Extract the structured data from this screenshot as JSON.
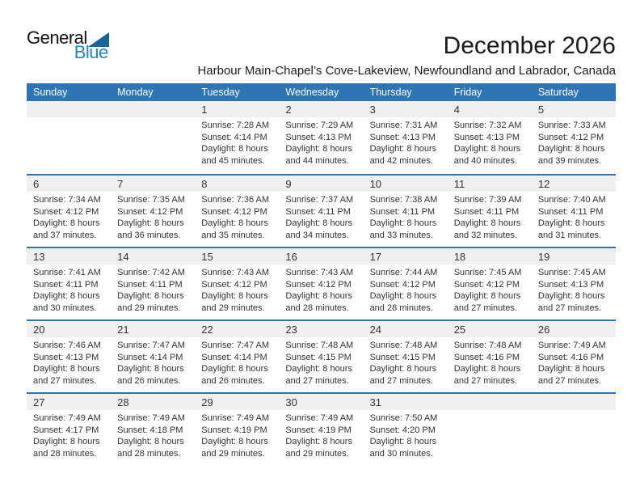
{
  "page": {
    "title": "December 2026",
    "subtitle": "Harbour Main-Chapel’s Cove-Lakeview, Newfoundland and Labrador, Canada"
  },
  "logo": {
    "part1": "General",
    "part2": "Blue"
  },
  "colors": {
    "header-blue": "#2E75B6",
    "line-blue": "#2E75B6",
    "band-gray": "#EFEFEF",
    "text-dark": "#333333",
    "logo-blue": "#1E88C9",
    "logo-tri": "#16649E"
  },
  "calendar": {
    "weekdays": [
      "Sunday",
      "Monday",
      "Tuesday",
      "Wednesday",
      "Thursday",
      "Friday",
      "Saturday"
    ],
    "weeks": [
      [
        null,
        null,
        {
          "day": "1",
          "lines": [
            "Sunrise: 7:28 AM",
            "Sunset: 4:14 PM",
            "Daylight: 8 hours",
            "and 45 minutes."
          ]
        },
        {
          "day": "2",
          "lines": [
            "Sunrise: 7:29 AM",
            "Sunset: 4:13 PM",
            "Daylight: 8 hours",
            "and 44 minutes."
          ]
        },
        {
          "day": "3",
          "lines": [
            "Sunrise: 7:31 AM",
            "Sunset: 4:13 PM",
            "Daylight: 8 hours",
            "and 42 minutes."
          ]
        },
        {
          "day": "4",
          "lines": [
            "Sunrise: 7:32 AM",
            "Sunset: 4:13 PM",
            "Daylight: 8 hours",
            "and 40 minutes."
          ]
        },
        {
          "day": "5",
          "lines": [
            "Sunrise: 7:33 AM",
            "Sunset: 4:12 PM",
            "Daylight: 8 hours",
            "and 39 minutes."
          ]
        }
      ],
      [
        {
          "day": "6",
          "lines": [
            "Sunrise: 7:34 AM",
            "Sunset: 4:12 PM",
            "Daylight: 8 hours",
            "and 37 minutes."
          ]
        },
        {
          "day": "7",
          "lines": [
            "Sunrise: 7:35 AM",
            "Sunset: 4:12 PM",
            "Daylight: 8 hours",
            "and 36 minutes."
          ]
        },
        {
          "day": "8",
          "lines": [
            "Sunrise: 7:36 AM",
            "Sunset: 4:12 PM",
            "Daylight: 8 hours",
            "and 35 minutes."
          ]
        },
        {
          "day": "9",
          "lines": [
            "Sunrise: 7:37 AM",
            "Sunset: 4:11 PM",
            "Daylight: 8 hours",
            "and 34 minutes."
          ]
        },
        {
          "day": "10",
          "lines": [
            "Sunrise: 7:38 AM",
            "Sunset: 4:11 PM",
            "Daylight: 8 hours",
            "and 33 minutes."
          ]
        },
        {
          "day": "11",
          "lines": [
            "Sunrise: 7:39 AM",
            "Sunset: 4:11 PM",
            "Daylight: 8 hours",
            "and 32 minutes."
          ]
        },
        {
          "day": "12",
          "lines": [
            "Sunrise: 7:40 AM",
            "Sunset: 4:11 PM",
            "Daylight: 8 hours",
            "and 31 minutes."
          ]
        }
      ],
      [
        {
          "day": "13",
          "lines": [
            "Sunrise: 7:41 AM",
            "Sunset: 4:11 PM",
            "Daylight: 8 hours",
            "and 30 minutes."
          ]
        },
        {
          "day": "14",
          "lines": [
            "Sunrise: 7:42 AM",
            "Sunset: 4:11 PM",
            "Daylight: 8 hours",
            "and 29 minutes."
          ]
        },
        {
          "day": "15",
          "lines": [
            "Sunrise: 7:43 AM",
            "Sunset: 4:12 PM",
            "Daylight: 8 hours",
            "and 29 minutes."
          ]
        },
        {
          "day": "16",
          "lines": [
            "Sunrise: 7:43 AM",
            "Sunset: 4:12 PM",
            "Daylight: 8 hours",
            "and 28 minutes."
          ]
        },
        {
          "day": "17",
          "lines": [
            "Sunrise: 7:44 AM",
            "Sunset: 4:12 PM",
            "Daylight: 8 hours",
            "and 28 minutes."
          ]
        },
        {
          "day": "18",
          "lines": [
            "Sunrise: 7:45 AM",
            "Sunset: 4:12 PM",
            "Daylight: 8 hours",
            "and 27 minutes."
          ]
        },
        {
          "day": "19",
          "lines": [
            "Sunrise: 7:45 AM",
            "Sunset: 4:13 PM",
            "Daylight: 8 hours",
            "and 27 minutes."
          ]
        }
      ],
      [
        {
          "day": "20",
          "lines": [
            "Sunrise: 7:46 AM",
            "Sunset: 4:13 PM",
            "Daylight: 8 hours",
            "and 27 minutes."
          ]
        },
        {
          "day": "21",
          "lines": [
            "Sunrise: 7:47 AM",
            "Sunset: 4:14 PM",
            "Daylight: 8 hours",
            "and 26 minutes."
          ]
        },
        {
          "day": "22",
          "lines": [
            "Sunrise: 7:47 AM",
            "Sunset: 4:14 PM",
            "Daylight: 8 hours",
            "and 26 minutes."
          ]
        },
        {
          "day": "23",
          "lines": [
            "Sunrise: 7:48 AM",
            "Sunset: 4:15 PM",
            "Daylight: 8 hours",
            "and 27 minutes."
          ]
        },
        {
          "day": "24",
          "lines": [
            "Sunrise: 7:48 AM",
            "Sunset: 4:15 PM",
            "Daylight: 8 hours",
            "and 27 minutes."
          ]
        },
        {
          "day": "25",
          "lines": [
            "Sunrise: 7:48 AM",
            "Sunset: 4:16 PM",
            "Daylight: 8 hours",
            "and 27 minutes."
          ]
        },
        {
          "day": "26",
          "lines": [
            "Sunrise: 7:49 AM",
            "Sunset: 4:16 PM",
            "Daylight: 8 hours",
            "and 27 minutes."
          ]
        }
      ],
      [
        {
          "day": "27",
          "lines": [
            "Sunrise: 7:49 AM",
            "Sunset: 4:17 PM",
            "Daylight: 8 hours",
            "and 28 minutes."
          ]
        },
        {
          "day": "28",
          "lines": [
            "Sunrise: 7:49 AM",
            "Sunset: 4:18 PM",
            "Daylight: 8 hours",
            "and 28 minutes."
          ]
        },
        {
          "day": "29",
          "lines": [
            "Sunrise: 7:49 AM",
            "Sunset: 4:19 PM",
            "Daylight: 8 hours",
            "and 29 minutes."
          ]
        },
        {
          "day": "30",
          "lines": [
            "Sunrise: 7:49 AM",
            "Sunset: 4:19 PM",
            "Daylight: 8 hours",
            "and 29 minutes."
          ]
        },
        {
          "day": "31",
          "lines": [
            "Sunrise: 7:50 AM",
            "Sunset: 4:20 PM",
            "Daylight: 8 hours",
            "and 30 minutes."
          ]
        },
        null,
        null
      ]
    ]
  }
}
